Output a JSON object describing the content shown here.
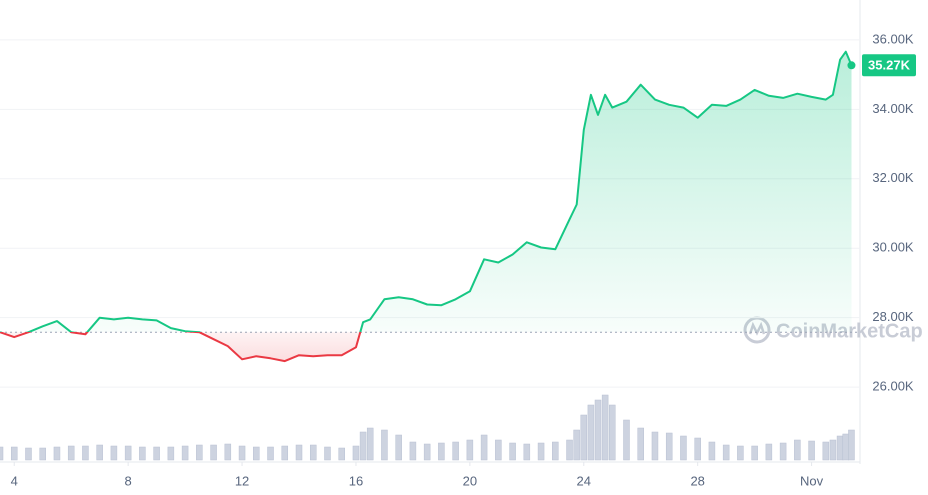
{
  "chart_data": {
    "type": "line",
    "x": [
      3.5,
      4,
      4.5,
      5,
      5.5,
      6,
      6.5,
      7,
      7.5,
      8,
      8.5,
      9,
      9.5,
      10,
      10.5,
      11,
      11.5,
      12,
      12.5,
      13,
      13.5,
      14,
      14.5,
      15,
      15.5,
      16,
      16.25,
      16.5,
      17,
      17.5,
      18,
      18.5,
      19,
      19.5,
      20,
      20.5,
      21,
      21.5,
      22,
      22.5,
      23,
      23.5,
      23.75,
      24,
      24.25,
      24.5,
      24.75,
      25,
      25.5,
      26,
      26.5,
      27,
      27.5,
      28,
      28.5,
      29,
      29.5,
      30,
      30.5,
      31,
      31.5,
      32,
      32.5,
      32.75,
      33,
      33.2,
      33.4
    ],
    "xlim": [
      3.5,
      33.7
    ],
    "xticks": [
      4,
      8,
      12,
      16,
      20,
      24,
      28,
      {
        "value": 32,
        "label": "Nov"
      }
    ],
    "ylim": [
      23900,
      37150
    ],
    "yticks": [
      {
        "value": 26000,
        "label": "26.00K"
      },
      {
        "value": 28000,
        "label": "28.00K"
      },
      {
        "value": 30000,
        "label": "30.00K"
      },
      {
        "value": 32000,
        "label": "32.00K"
      },
      {
        "value": 34000,
        "label": "34.00K"
      },
      {
        "value": 36000,
        "label": "36.00K"
      }
    ],
    "y2lim": [
      0,
      100
    ],
    "grid": true,
    "baseline": 27580,
    "series": [
      {
        "color": "#16c784",
        "down_color": "#ea3943",
        "values": [
          27580,
          27440,
          27580,
          27750,
          27900,
          27580,
          27520,
          28000,
          27950,
          28000,
          27950,
          27920,
          27700,
          27610,
          27580,
          27380,
          27180,
          26800,
          26890,
          26830,
          26750,
          26920,
          26890,
          26920,
          26920,
          27150,
          27870,
          27950,
          28530,
          28590,
          28530,
          28380,
          28360,
          28530,
          28760,
          29680,
          29590,
          29820,
          30170,
          30020,
          29970,
          30830,
          31260,
          33410,
          34420,
          33840,
          34420,
          34050,
          34220,
          34710,
          34280,
          34130,
          34050,
          33760,
          34130,
          34100,
          34280,
          34560,
          34390,
          34330,
          34450,
          34360,
          34280,
          34420,
          35430,
          35660,
          35270
        ]
      },
      {
        "type": "bar",
        "axis": "y2",
        "color": "#cdd3e0",
        "values": [
          13,
          13,
          12,
          12,
          13,
          14,
          14,
          15,
          14,
          14,
          13,
          13,
          13,
          14,
          15,
          15,
          16,
          14,
          13,
          13,
          14,
          15,
          15,
          13,
          12,
          14,
          28,
          32,
          30,
          25,
          18,
          16,
          17,
          18,
          20,
          25,
          20,
          17,
          16,
          17,
          18,
          20,
          30,
          45,
          55,
          60,
          65,
          55,
          40,
          32,
          28,
          27,
          24,
          22,
          18,
          15,
          14,
          14,
          16,
          17,
          20,
          19,
          18,
          20,
          24,
          26,
          30
        ]
      }
    ],
    "current_price": {
      "value": 35270,
      "label": "35.27K"
    },
    "watermark": "CoinMarketCap"
  }
}
